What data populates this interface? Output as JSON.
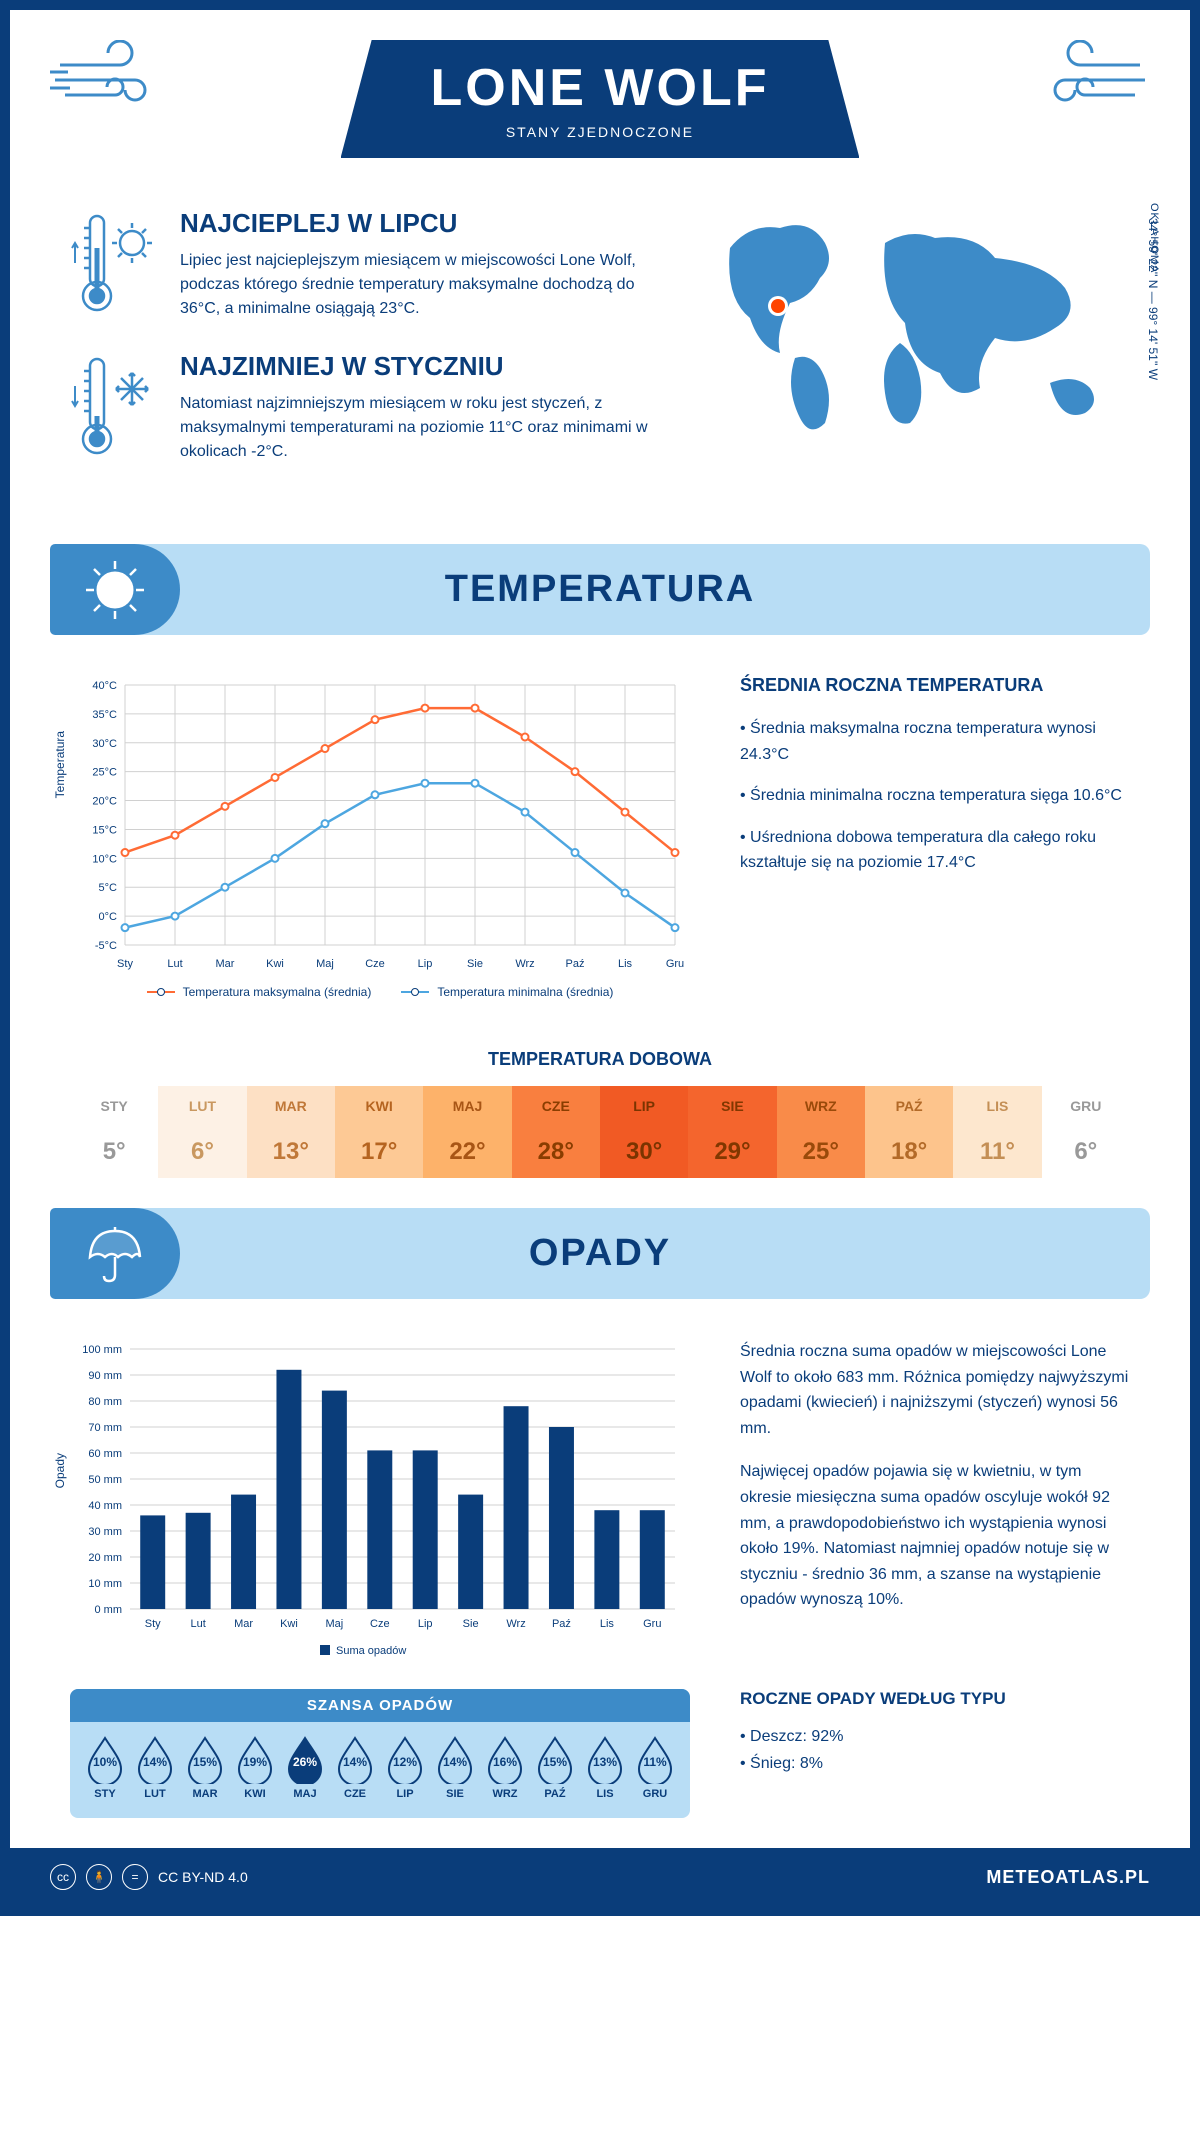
{
  "header": {
    "title": "LONE WOLF",
    "subtitle": "STANY ZJEDNOCZONE"
  },
  "intro": {
    "warm": {
      "title": "NAJCIEPLEJ W LIPCU",
      "text": "Lipiec jest najcieplejszym miesiącem w miejscowości Lone Wolf, podczas którego średnie temperatury maksymalne dochodzą do 36°C, a minimalne osiągają 23°C."
    },
    "cold": {
      "title": "NAJZIMNIEJ W STYCZNIU",
      "text": "Natomiast najzimniejszym miesiącem w roku jest styczeń, z maksymalnymi temperaturami na poziomie 11°C oraz minimami w okolicach -2°C."
    },
    "coords": "34° 59' 22'' N — 99° 14' 51'' W",
    "region": "OKLAHOMA"
  },
  "colors": {
    "primary": "#0a3d7a",
    "accent": "#3d8bc8",
    "light": "#b8ddf5",
    "orange": "#ff6b35",
    "blue_line": "#4da6e0",
    "bar": "#0a3d7a",
    "grid": "#d0d0d0"
  },
  "temp_section": {
    "header": "TEMPERATURA",
    "chart": {
      "type": "line",
      "months": [
        "Sty",
        "Lut",
        "Mar",
        "Kwi",
        "Maj",
        "Cze",
        "Lip",
        "Sie",
        "Wrz",
        "Paź",
        "Lis",
        "Gru"
      ],
      "max": [
        11,
        14,
        19,
        24,
        29,
        34,
        36,
        36,
        31,
        25,
        18,
        11
      ],
      "min": [
        -2,
        0,
        5,
        10,
        16,
        21,
        23,
        23,
        18,
        11,
        4,
        -2
      ],
      "ylabel": "Temperatura",
      "ylim": [
        -5,
        40
      ],
      "ytick_step": 5,
      "max_color": "#ff6b35",
      "min_color": "#4da6e0",
      "legend_max": "Temperatura maksymalna (średnia)",
      "legend_min": "Temperatura minimalna (średnia)"
    },
    "summary": {
      "title": "ŚREDNIA ROCZNA TEMPERATURA",
      "b1": "• Średnia maksymalna roczna temperatura wynosi 24.3°C",
      "b2": "• Średnia minimalna roczna temperatura sięga 10.6°C",
      "b3": "• Uśredniona dobowa temperatura dla całego roku kształtuje się na poziomie 17.4°C"
    },
    "daily": {
      "title": "TEMPERATURA DOBOWA",
      "months": [
        "STY",
        "LUT",
        "MAR",
        "KWI",
        "MAJ",
        "CZE",
        "LIP",
        "SIE",
        "WRZ",
        "PAŹ",
        "LIS",
        "GRU"
      ],
      "values": [
        "5°",
        "6°",
        "13°",
        "17°",
        "22°",
        "28°",
        "30°",
        "29°",
        "25°",
        "18°",
        "11°",
        "6°"
      ],
      "bg_colors": [
        "#ffffff",
        "#fdf1e5",
        "#fde0c4",
        "#fdc995",
        "#fdb26a",
        "#f97f3f",
        "#f15a24",
        "#f4652d",
        "#f98b49",
        "#fdc48c",
        "#fde7ce",
        "#ffffff"
      ],
      "text_colors": [
        "#999",
        "#c99860",
        "#c07838",
        "#b56420",
        "#a85515",
        "#8a3d00",
        "#7a3400",
        "#813700",
        "#9a4a0a",
        "#b36a28",
        "#c48f55",
        "#999"
      ]
    }
  },
  "precip_section": {
    "header": "OPADY",
    "chart": {
      "type": "bar",
      "months": [
        "Sty",
        "Lut",
        "Mar",
        "Kwi",
        "Maj",
        "Cze",
        "Lip",
        "Sie",
        "Wrz",
        "Paź",
        "Lis",
        "Gru"
      ],
      "values": [
        36,
        37,
        44,
        92,
        84,
        61,
        61,
        44,
        78,
        70,
        38,
        38
      ],
      "ylabel": "Opady",
      "ylim": [
        0,
        100
      ],
      "ytick_step": 10,
      "bar_color": "#0a3d7a",
      "legend": "Suma opadów"
    },
    "text": {
      "p1": "Średnia roczna suma opadów w miejscowości Lone Wolf to około 683 mm. Różnica pomiędzy najwyższymi opadami (kwiecień) i najniższymi (styczeń) wynosi 56 mm.",
      "p2": "Najwięcej opadów pojawia się w kwietniu, w tym okresie miesięczna suma opadów oscyluje wokół 92 mm, a prawdopodobieństwo ich wystąpienia wynosi około 19%. Natomiast najmniej opadów notuje się w styczniu - średnio 36 mm, a szanse na wystąpienie opadów wynoszą 10%."
    },
    "chance": {
      "title": "SZANSA OPADÓW",
      "months": [
        "STY",
        "LUT",
        "MAR",
        "KWI",
        "MAJ",
        "CZE",
        "LIP",
        "SIE",
        "WRZ",
        "PAŹ",
        "LIS",
        "GRU"
      ],
      "values": [
        "10%",
        "14%",
        "15%",
        "19%",
        "26%",
        "14%",
        "12%",
        "14%",
        "16%",
        "15%",
        "13%",
        "11%"
      ],
      "max_index": 4
    },
    "by_type": {
      "title": "ROCZNE OPADY WEDŁUG TYPU",
      "rain": "• Deszcz: 92%",
      "snow": "• Śnieg: 8%"
    }
  },
  "footer": {
    "license": "CC BY-ND 4.0",
    "site": "METEOATLAS.PL"
  }
}
